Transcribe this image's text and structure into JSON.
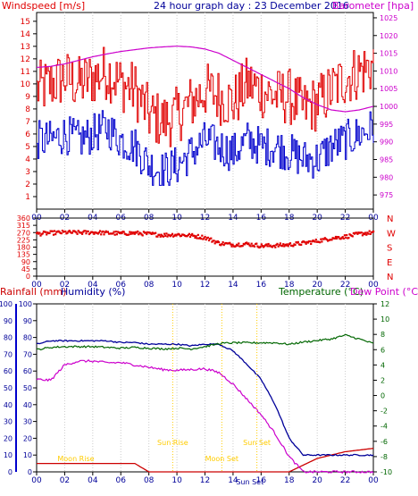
{
  "colors": {
    "wind": "#e00000",
    "gust": "#e00000",
    "avg": "#0000cc",
    "baro": "#cc00cc",
    "dir": "#e00000",
    "rain": "#cc0000",
    "hum": "#000099",
    "temp": "#006600",
    "dew": "#cc00cc",
    "frame": "#000000",
    "grid": "#cccccc",
    "moon": "#ffcc00"
  },
  "panel1": {
    "header": "24 hour graph day : 23 December 2016",
    "left_label": "Windspeed [m/s]",
    "right_label": "Barometer [hpa]"
  },
  "panel3": {
    "rain_label": "Rainfall (mm)",
    "hum_label": "Humidity (%)",
    "temp_label": "Temperature (°C)",
    "dew_label": "Dew Point (°C)"
  },
  "chart_data": [
    {
      "type": "line",
      "title": "24 hour graph day : 23 December 2016",
      "xlabel": "",
      "x_ticks": [
        "00",
        "02",
        "04",
        "06",
        "08",
        "10",
        "12",
        "14",
        "16",
        "18",
        "20",
        "22",
        "00"
      ],
      "y_left": {
        "label": "Windspeed [m/s]",
        "ticks": [
          1,
          2,
          3,
          4,
          5,
          6,
          7,
          8,
          9,
          10,
          11,
          12,
          13,
          14,
          15
        ],
        "ylim": [
          0,
          15.7
        ]
      },
      "y_right": {
        "label": "Barometer [hpa]",
        "ticks": [
          975,
          980,
          985,
          990,
          995,
          1000,
          1005,
          1010,
          1015,
          1020,
          1025
        ],
        "ylim": [
          971,
          1026.5
        ]
      },
      "x": [
        0,
        1,
        2,
        3,
        4,
        5,
        6,
        7,
        8,
        9,
        10,
        11,
        12,
        13,
        14,
        15,
        16,
        17,
        18,
        19,
        20,
        21,
        22,
        23,
        24
      ],
      "series": [
        {
          "name": "Gust",
          "axis": "left",
          "values": [
            9.5,
            10,
            10.5,
            10,
            10.5,
            11,
            10,
            9.5,
            7.5,
            7,
            7.5,
            8.5,
            9.5,
            9,
            8.5,
            10,
            9.5,
            9,
            9,
            8,
            8.5,
            9.5,
            10.5,
            11,
            11.5
          ]
        },
        {
          "name": "Average",
          "axis": "left",
          "values": [
            5.5,
            5.5,
            6,
            5.5,
            6,
            6.5,
            5.5,
            5,
            3.5,
            3,
            3.5,
            4.5,
            5.5,
            5,
            4.5,
            5.5,
            5,
            5,
            4.5,
            4,
            4,
            5,
            5.5,
            6,
            6.5
          ]
        },
        {
          "name": "Barometer",
          "axis": "right",
          "values": [
            1011,
            1011.3,
            1012,
            1013,
            1014,
            1014.8,
            1015.5,
            1016,
            1016.5,
            1016.8,
            1017,
            1016.8,
            1016.2,
            1015,
            1013,
            1011,
            1009,
            1007,
            1005,
            1002.5,
            1000.5,
            999,
            998.5,
            999,
            1000
          ]
        }
      ]
    },
    {
      "type": "scatter",
      "title": "",
      "x_ticks": [
        "00",
        "02",
        "04",
        "06",
        "08",
        "10",
        "12",
        "14",
        "16",
        "18",
        "20",
        "22",
        "00"
      ],
      "y_left": {
        "label": "",
        "ticks": [
          0,
          45,
          90,
          135,
          180,
          225,
          270,
          315,
          360
        ],
        "ylim": [
          0,
          360
        ]
      },
      "y_right": {
        "labels": [
          "N",
          "W",
          "S",
          "E",
          "N"
        ]
      },
      "x": [
        0,
        1,
        2,
        3,
        4,
        5,
        6,
        7,
        8,
        9,
        10,
        11,
        12,
        13,
        14,
        15,
        16,
        17,
        18,
        19,
        20,
        21,
        22,
        23,
        24
      ],
      "series": [
        {
          "name": "Wind direction",
          "values": [
            262,
            268,
            272,
            270,
            272,
            268,
            265,
            268,
            262,
            255,
            258,
            252,
            240,
            205,
            195,
            200,
            188,
            190,
            195,
            205,
            218,
            235,
            245,
            262,
            272
          ]
        }
      ]
    },
    {
      "type": "line",
      "title": "",
      "x_ticks": [
        "00",
        "02",
        "04",
        "06",
        "08",
        "10",
        "12",
        "14",
        "16",
        "18",
        "20",
        "22",
        "00"
      ],
      "y_left_rain": {
        "label": "Rainfall (mm)",
        "ticks": [
          0,
          10,
          20,
          30,
          40,
          50,
          60,
          70,
          80,
          90,
          100
        ],
        "ylim": [
          0,
          100
        ]
      },
      "y_left_hum": {
        "label": "Humidity (%)",
        "ticks": [
          0,
          10,
          20,
          30,
          40,
          50,
          60,
          70,
          80,
          90,
          100
        ],
        "ylim": [
          0,
          100
        ]
      },
      "y_right": {
        "label": "Temperature (°C)",
        "ticks": [
          -10,
          -8,
          -6,
          -4,
          -2,
          0,
          2,
          4,
          6,
          8,
          10,
          12
        ],
        "ylim": [
          -10,
          12
        ]
      },
      "annotations": [
        "Moon Rise",
        "Sun Rise",
        "Moon Set",
        "Sun Set",
        "Sun Set"
      ],
      "x": [
        0,
        1,
        2,
        3,
        4,
        5,
        6,
        7,
        8,
        9,
        10,
        11,
        12,
        13,
        14,
        15,
        16,
        17,
        18,
        19,
        20,
        21,
        22,
        23,
        24
      ],
      "series": [
        {
          "name": "Rainfall",
          "axis": "rain",
          "values": [
            5,
            5,
            5,
            5,
            5,
            5,
            5,
            5,
            0,
            0,
            0,
            0,
            0,
            0,
            0,
            0,
            0,
            0,
            0,
            4,
            8,
            10,
            12,
            13,
            14
          ]
        },
        {
          "name": "Humidity",
          "axis": "hum",
          "values": [
            76,
            78,
            78,
            78,
            78,
            78,
            77,
            77,
            76,
            76,
            76,
            75,
            76,
            76,
            72,
            64,
            55,
            40,
            20,
            10,
            10,
            10,
            10,
            10,
            10
          ]
        },
        {
          "name": "Temperature",
          "axis": "temp",
          "values": [
            6,
            6.3,
            6.4,
            6.4,
            6.4,
            6.3,
            6.2,
            6.3,
            6.2,
            6.1,
            6.2,
            6.1,
            6.4,
            6.8,
            6.9,
            6.9,
            6.9,
            6.9,
            6.7,
            7.0,
            7.2,
            7.4,
            7.9,
            7.4,
            6.8
          ]
        },
        {
          "name": "Dew Point",
          "axis": "temp",
          "values": [
            2.1,
            2.0,
            4.0,
            4.5,
            4.5,
            4.3,
            4.3,
            4.0,
            3.7,
            3.4,
            3.3,
            3.4,
            3.5,
            3.0,
            1.5,
            -0.5,
            -2.5,
            -5.0,
            -8.0,
            -10,
            -10,
            -10,
            -10,
            -10,
            -10
          ]
        }
      ]
    }
  ],
  "sun": {
    "moon_rise": "Moon Rise",
    "sun_rise": "Sun Rise",
    "moon_set": "Moon Set",
    "sun_set": "Sun Set",
    "sun_set2": "Sun Set"
  }
}
